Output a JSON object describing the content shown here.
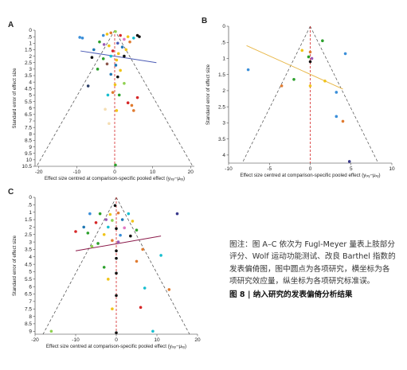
{
  "caption": {
    "text": "图注：图 A–C 依次为 Fugl-Meyer 量表上肢部分评分、Wolf 运动功能测试、改良 Barthel 指数的发表偏倚图，图中圆点为各项研究，横坐标为各项研究效应量，纵坐标为各项研究标准误。",
    "figure_title": "图 8 | 纳入研究的发表偏倚分析结果"
  },
  "chart_data": [
    {
      "panel": "A",
      "type": "scatter",
      "title": "",
      "xlabel": "Effect size centred at comparison-specific pooled effect (yᵢₓᵧ−μₓᵧ)",
      "ylabel": "Standard error of effect size",
      "xlim": [
        -21,
        21
      ],
      "ylim": [
        0,
        10.5
      ],
      "y_reversed": true,
      "xticks": [
        "-20",
        "-10",
        "0",
        "10",
        "20"
      ],
      "yticks": [
        "0",
        ".5",
        "1",
        "1.5",
        "2",
        "2.5",
        "3",
        "3.5",
        "4",
        "4.5",
        "5",
        "5.5",
        "6",
        "6.5",
        "7",
        "7.5",
        "8",
        "8.5",
        "9",
        "9.5",
        "10",
        "10.5"
      ],
      "funnel_apex_x": 0,
      "funnel_base_y": 10.5,
      "funnel_base_x": [
        -20.58,
        20.58
      ],
      "fit_line": [
        [
          -9,
          1.6
        ],
        [
          11,
          2.5
        ]
      ],
      "points": [
        {
          "x": -9.2,
          "y": 0.55,
          "color": "#3b8fd9"
        },
        {
          "x": -8.5,
          "y": 0.6,
          "color": "#3b8fd9"
        },
        {
          "x": -3,
          "y": 0.4,
          "color": "#3b8fd9"
        },
        {
          "x": -2,
          "y": 0.3,
          "color": "#f0c419"
        },
        {
          "x": -1,
          "y": 0.2,
          "color": "#e07b30"
        },
        {
          "x": 0.2,
          "y": 0.1,
          "color": "#8fd14f"
        },
        {
          "x": 1.5,
          "y": 0.4,
          "color": "#d62728"
        },
        {
          "x": 2.5,
          "y": 0.7,
          "color": "#e377c2"
        },
        {
          "x": 3.5,
          "y": 0.5,
          "color": "#f0c419"
        },
        {
          "x": 5,
          "y": 0.6,
          "color": "#17becf"
        },
        {
          "x": 6,
          "y": 0.4,
          "color": "#111111"
        },
        {
          "x": 6.5,
          "y": 0.5,
          "color": "#111111"
        },
        {
          "x": -4,
          "y": 0.9,
          "color": "#2ca02c"
        },
        {
          "x": -2.8,
          "y": 1.1,
          "color": "#9b59b6"
        },
        {
          "x": -1.5,
          "y": 1.2,
          "color": "#f0c419"
        },
        {
          "x": 0.8,
          "y": 1,
          "color": "#4a5ab5"
        },
        {
          "x": 2,
          "y": 1.3,
          "color": "#1f77b4"
        },
        {
          "x": 3,
          "y": 1.5,
          "color": "#f0c419"
        },
        {
          "x": 4,
          "y": 0.9,
          "color": "#e07b30"
        },
        {
          "x": -5.5,
          "y": 1.5,
          "color": "#1f77b4"
        },
        {
          "x": -0.5,
          "y": 1.6,
          "color": "#d62728"
        },
        {
          "x": 1,
          "y": 1.8,
          "color": "#f0c419"
        },
        {
          "x": -6,
          "y": 2.1,
          "color": "#111111"
        },
        {
          "x": -3,
          "y": 2.2,
          "color": "#2ca02c"
        },
        {
          "x": -1,
          "y": 2,
          "color": "#17becf"
        },
        {
          "x": 0.5,
          "y": 2.3,
          "color": "#f0c419"
        },
        {
          "x": 2.5,
          "y": 2,
          "color": "#111111"
        },
        {
          "x": -2,
          "y": 2.6,
          "color": "#8c564b"
        },
        {
          "x": 0.3,
          "y": 2.7,
          "color": "#1f77b4"
        },
        {
          "x": -4.5,
          "y": 3,
          "color": "#2ca02c"
        },
        {
          "x": 1.5,
          "y": 3.1,
          "color": "#f0c419"
        },
        {
          "x": -1,
          "y": 3.4,
          "color": "#1f77b4"
        },
        {
          "x": 0.8,
          "y": 3.6,
          "color": "#111111"
        },
        {
          "x": -7,
          "y": 4.3,
          "color": "#2a3d66"
        },
        {
          "x": 0.1,
          "y": 4.2,
          "color": "#f0c419"
        },
        {
          "x": 2.5,
          "y": 4.1,
          "color": "#8fd14f"
        },
        {
          "x": -0.5,
          "y": 4.8,
          "color": "#e07b30"
        },
        {
          "x": 1.2,
          "y": 5,
          "color": "#2ca02c"
        },
        {
          "x": -1.8,
          "y": 5,
          "color": "#17becf"
        },
        {
          "x": 6,
          "y": 5.2,
          "color": "#d62728"
        },
        {
          "x": 3.5,
          "y": 5.6,
          "color": "#d62728"
        },
        {
          "x": 4.5,
          "y": 5.8,
          "color": "#e07b30"
        },
        {
          "x": -2.5,
          "y": 6.1,
          "color": "#f5deb3"
        },
        {
          "x": 0.5,
          "y": 6.2,
          "color": "#f0c419"
        },
        {
          "x": 5,
          "y": 6.2,
          "color": "#e07b30"
        },
        {
          "x": -1.5,
          "y": 7.2,
          "color": "#f5deb3"
        },
        {
          "x": 0.2,
          "y": 10.4,
          "color": "#2ca02c"
        }
      ]
    },
    {
      "panel": "B",
      "type": "scatter",
      "title": "",
      "xlabel": "Effect size centred at comparison-specific pooled effect (yᵢₓᵧ−μₓᵧ)",
      "ylabel": "Standard error of effect size",
      "xlim": [
        -10,
        10
      ],
      "ylim": [
        0,
        4.25
      ],
      "y_reversed": true,
      "xticks": [
        "-10",
        "-5",
        "0",
        "5",
        "10"
      ],
      "yticks": [
        "0",
        ".5",
        "1",
        "1.5",
        "2",
        "2.5",
        "3",
        "3.5",
        "4"
      ],
      "funnel_apex_x": 0,
      "funnel_base_y": 4.25,
      "funnel_base_x": [
        -8.33,
        8.33
      ],
      "fit_line": [
        [
          -7.8,
          0.6
        ],
        [
          4,
          1.95
        ]
      ],
      "points": [
        {
          "x": 1.5,
          "y": 0.45,
          "color": "#2ca02c"
        },
        {
          "x": -1,
          "y": 0.75,
          "color": "#f0c419"
        },
        {
          "x": 0,
          "y": 0.8,
          "color": "#e07b30"
        },
        {
          "x": -0.2,
          "y": 0.95,
          "color": "#2ca02c"
        },
        {
          "x": 0.2,
          "y": 1,
          "color": "#9b59b6"
        },
        {
          "x": 0,
          "y": 1.1,
          "color": "#111111"
        },
        {
          "x": 4.3,
          "y": 0.85,
          "color": "#3b8fd9"
        },
        {
          "x": -7.6,
          "y": 1.35,
          "color": "#3b8fd9"
        },
        {
          "x": -2,
          "y": 1.65,
          "color": "#2ca02c"
        },
        {
          "x": -3.5,
          "y": 1.85,
          "color": "#e07b30"
        },
        {
          "x": 0,
          "y": 1.85,
          "color": "#f0c419"
        },
        {
          "x": 1.8,
          "y": 1.7,
          "color": "#f0c419"
        },
        {
          "x": 3.2,
          "y": 2.05,
          "color": "#3b8fd9"
        },
        {
          "x": 3.2,
          "y": 2.8,
          "color": "#3b8fd9"
        },
        {
          "x": 4,
          "y": 2.95,
          "color": "#e07b30"
        },
        {
          "x": 4.8,
          "y": 4.2,
          "color": "#3a3a8c"
        }
      ]
    },
    {
      "panel": "C",
      "type": "scatter",
      "title": "",
      "xlabel": "Effect size centred at comparison-specific pooled effect (yᵢₓᵧ−μₓᵧ)",
      "ylabel": "Standard error of effect size",
      "xlim": [
        -20,
        20
      ],
      "ylim": [
        0,
        9.2
      ],
      "y_reversed": true,
      "xticks": [
        "-20",
        "-10",
        "0",
        "10",
        "20"
      ],
      "yticks": [
        "0",
        ".5",
        "1",
        "1.5",
        "2",
        "2.5",
        "3",
        "3.5",
        "4",
        "4.5",
        "5",
        "5.5",
        "6",
        "6.5",
        "7",
        "7.5",
        "8",
        "8.5",
        "9"
      ],
      "funnel_apex_x": 0,
      "funnel_base_y": 9.2,
      "funnel_base_x": [
        -18.03,
        18.03
      ],
      "fit_line": [
        [
          -10,
          3.6
        ],
        [
          11,
          2.6
        ]
      ],
      "points": [
        {
          "x": -0.3,
          "y": 0.55,
          "color": "#111111"
        },
        {
          "x": -6.5,
          "y": 1.1,
          "color": "#3b8fd9"
        },
        {
          "x": -4,
          "y": 1.1,
          "color": "#2ca02c"
        },
        {
          "x": -1.5,
          "y": 1.15,
          "color": "#f0c419"
        },
        {
          "x": 0.5,
          "y": 1.05,
          "color": "#e07b30"
        },
        {
          "x": 3,
          "y": 1.1,
          "color": "#17becf"
        },
        {
          "x": 15,
          "y": 1.1,
          "color": "#3a3a8c"
        },
        {
          "x": -2.5,
          "y": 1.5,
          "color": "#9b59b6"
        },
        {
          "x": -1,
          "y": 1.55,
          "color": "#8fd14f"
        },
        {
          "x": 1.5,
          "y": 1.5,
          "color": "#1f77b4"
        },
        {
          "x": 4,
          "y": 1.6,
          "color": "#f0c419"
        },
        {
          "x": -5,
          "y": 1.7,
          "color": "#d62728"
        },
        {
          "x": -8,
          "y": 2,
          "color": "#1f77b4"
        },
        {
          "x": -2,
          "y": 2,
          "color": "#17becf"
        },
        {
          "x": 0,
          "y": 2.1,
          "color": "#111111"
        },
        {
          "x": 2,
          "y": 2.05,
          "color": "#e377c2"
        },
        {
          "x": 5,
          "y": 2.2,
          "color": "#2ca02c"
        },
        {
          "x": -10,
          "y": 2.3,
          "color": "#d62728"
        },
        {
          "x": -7,
          "y": 2.4,
          "color": "#2ca02c"
        },
        {
          "x": -3,
          "y": 2.5,
          "color": "#f0c419"
        },
        {
          "x": 1,
          "y": 2.55,
          "color": "#3b8fd9"
        },
        {
          "x": 3.5,
          "y": 2.6,
          "color": "#111111"
        },
        {
          "x": -1,
          "y": 2.9,
          "color": "#e07b30"
        },
        {
          "x": 0.5,
          "y": 3,
          "color": "#9b59b6"
        },
        {
          "x": -4.5,
          "y": 3.1,
          "color": "#2ca02c"
        },
        {
          "x": -6,
          "y": 3.3,
          "color": "#8fd14f"
        },
        {
          "x": 0,
          "y": 3.6,
          "color": "#111111"
        },
        {
          "x": 6.5,
          "y": 3.5,
          "color": "#e07b30"
        },
        {
          "x": 0,
          "y": 4.1,
          "color": "#111111"
        },
        {
          "x": -3,
          "y": 4.7,
          "color": "#2ca02c"
        },
        {
          "x": 5,
          "y": 4.3,
          "color": "#e07b30"
        },
        {
          "x": 11,
          "y": 3.9,
          "color": "#17becf"
        },
        {
          "x": 0,
          "y": 5.1,
          "color": "#111111"
        },
        {
          "x": -2,
          "y": 5.5,
          "color": "#f0c419"
        },
        {
          "x": 7,
          "y": 6.1,
          "color": "#17becf"
        },
        {
          "x": 13,
          "y": 6.2,
          "color": "#e07b30"
        },
        {
          "x": 0,
          "y": 6.6,
          "color": "#111111"
        },
        {
          "x": -1,
          "y": 7.5,
          "color": "#f0c419"
        },
        {
          "x": 6,
          "y": 7.4,
          "color": "#d62728"
        },
        {
          "x": -16,
          "y": 9,
          "color": "#8fd14f"
        },
        {
          "x": 9,
          "y": 9,
          "color": "#17becf"
        },
        {
          "x": 0,
          "y": 9.1,
          "color": "#111111"
        }
      ]
    }
  ]
}
